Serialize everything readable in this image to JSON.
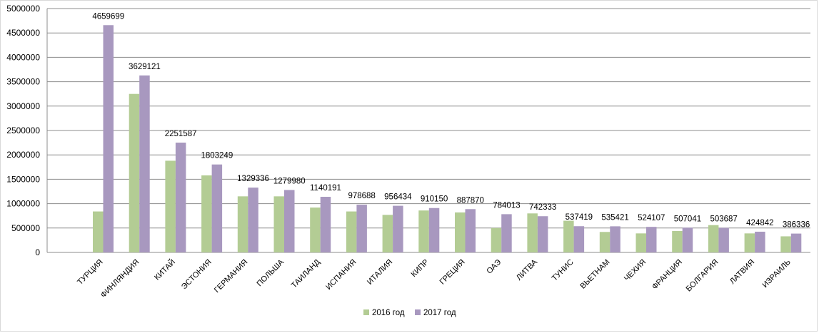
{
  "chart_data": {
    "type": "bar",
    "categories": [
      "ТУРЦИЯ",
      "ФИНЛЯНДИЯ",
      "КИТАЙ",
      "ЭСТОНИЯ",
      "ГЕРМАНИЯ",
      "ПОЛЬША",
      "ТАИЛАНД",
      "ИСПАНИЯ",
      "ИТАЛИЯ",
      "КИПР",
      "ГРЕЦИЯ",
      "ОАЭ",
      "ЛИТВА",
      "ТУНИС",
      "ВЬЕТНАМ",
      "ЧЕХИЯ",
      "ФРАНЦИЯ",
      "БОЛГАРИЯ",
      "ЛАТВИЯ",
      "ИЗРАИЛЬ"
    ],
    "series": [
      {
        "name": "2016 год",
        "color": "#b3cc94",
        "values": [
          840000,
          3250000,
          1880000,
          1580000,
          1150000,
          1150000,
          920000,
          840000,
          770000,
          860000,
          820000,
          500000,
          800000,
          650000,
          420000,
          390000,
          440000,
          560000,
          390000,
          330000
        ]
      },
      {
        "name": "2017 год",
        "color": "#a898bf",
        "values": [
          4659699,
          3629121,
          2251587,
          1803249,
          1329336,
          1279980,
          1140191,
          978688,
          956434,
          910150,
          887870,
          784013,
          742333,
          537419,
          535421,
          524107,
          507041,
          503687,
          424842,
          386336
        ]
      }
    ],
    "data_labels_series": "2017 год",
    "ylim": [
      0,
      5000000
    ],
    "yticks": [
      0,
      500000,
      1000000,
      1500000,
      2000000,
      2500000,
      3000000,
      3500000,
      4000000,
      4500000,
      5000000
    ],
    "grid": true,
    "legend_position": "bottom"
  }
}
